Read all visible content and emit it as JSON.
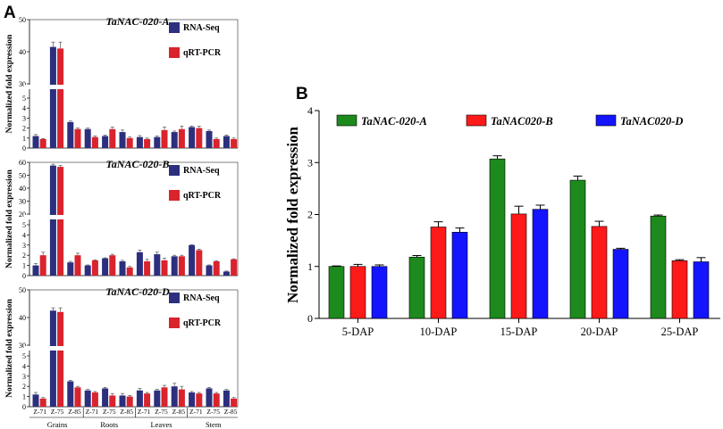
{
  "panels": {
    "a": {
      "letter": "A",
      "ylabel": "Normalized fold expression"
    },
    "b": {
      "letter": "B"
    }
  },
  "colors": {
    "rna_seq": "#2b2f7d",
    "qrt_pcr": "#d9232d",
    "green": "#1c8a1c",
    "red": "#ff1a1a",
    "blue": "#1414ff"
  },
  "chart_data": [
    {
      "type": "bar",
      "title": "TaNAC-020-A",
      "ylabel": "Normalized fold expression",
      "broken_axis": true,
      "ylim_lower": [
        0,
        5
      ],
      "ylim_upper": [
        30,
        50
      ],
      "yticks": [
        0,
        1,
        2,
        3,
        4,
        5,
        30,
        40,
        50
      ],
      "legend_position": "top-right",
      "categories": [
        "Z-71",
        "Z-75",
        "Z-85",
        "Z-71",
        "Z-75",
        "Z-85",
        "Z-71",
        "Z-75",
        "Z-85",
        "Z-71",
        "Z-75",
        "Z-85"
      ],
      "series": [
        {
          "name": "RNA-Seq",
          "values": [
            1.2,
            41.5,
            2.6,
            1.9,
            1.2,
            1.6,
            1.1,
            1.1,
            1.6,
            2.1,
            1.7,
            1.2
          ],
          "errors": [
            0.15,
            1.5,
            0.1,
            0.1,
            0.1,
            0.2,
            0.15,
            0.1,
            0.1,
            0.1,
            0.1,
            0.1
          ]
        },
        {
          "name": "qRT-PCR",
          "values": [
            0.9,
            41.0,
            1.9,
            1.1,
            1.9,
            1.0,
            0.9,
            1.8,
            1.9,
            2.0,
            0.9,
            0.9
          ],
          "errors": [
            0.05,
            2.0,
            0.1,
            0.1,
            0.2,
            0.1,
            0.1,
            0.3,
            0.3,
            0.2,
            0.1,
            0.1
          ]
        }
      ]
    },
    {
      "type": "bar",
      "title": "TaNAC-020-B",
      "ylabel": "Normalized fold expression",
      "broken_axis": true,
      "ylim_lower": [
        0,
        5
      ],
      "ylim_upper": [
        20,
        60
      ],
      "yticks": [
        0,
        1,
        2,
        3,
        4,
        5,
        20,
        30,
        40,
        50,
        60
      ],
      "legend_position": "top-right",
      "categories": [
        "Z-71",
        "Z-75",
        "Z-85",
        "Z-71",
        "Z-75",
        "Z-85",
        "Z-71",
        "Z-75",
        "Z-85",
        "Z-71",
        "Z-75",
        "Z-85"
      ],
      "series": [
        {
          "name": "RNA-Seq",
          "values": [
            1.0,
            57.5,
            1.3,
            1.0,
            1.7,
            1.4,
            2.3,
            2.1,
            1.9,
            3.0,
            1.0,
            0.4
          ],
          "errors": [
            0.2,
            1.0,
            0.1,
            0.05,
            0.05,
            0.1,
            0.2,
            0.2,
            0.1,
            0.05,
            0.05,
            0.05
          ]
        },
        {
          "name": "qRT-PCR",
          "values": [
            2.0,
            56.5,
            2.0,
            1.5,
            2.0,
            0.8,
            1.4,
            1.5,
            1.9,
            2.5,
            1.4,
            1.6
          ],
          "errors": [
            0.3,
            1.0,
            0.2,
            0.05,
            0.1,
            0.1,
            0.2,
            0.2,
            0.1,
            0.1,
            0.05,
            0.05
          ]
        }
      ]
    },
    {
      "type": "bar",
      "title": "TaNAC-020-D",
      "ylabel": "Normalized fold expression",
      "broken_axis": true,
      "ylim_lower": [
        0,
        5
      ],
      "ylim_upper": [
        30,
        50
      ],
      "yticks": [
        0,
        1,
        2,
        3,
        4,
        5,
        30,
        40,
        50
      ],
      "legend_position": "top-right",
      "categories": [
        "Z-71",
        "Z-75",
        "Z-85",
        "Z-71",
        "Z-75",
        "Z-85",
        "Z-71",
        "Z-75",
        "Z-85",
        "Z-71",
        "Z-75",
        "Z-85"
      ],
      "series": [
        {
          "name": "RNA-Seq",
          "values": [
            1.2,
            42.5,
            2.5,
            1.6,
            1.8,
            1.1,
            1.6,
            1.6,
            2.0,
            1.4,
            1.8,
            1.6
          ],
          "errors": [
            0.2,
            1.0,
            0.1,
            0.1,
            0.1,
            0.2,
            0.2,
            0.1,
            0.3,
            0.1,
            0.1,
            0.1
          ]
        },
        {
          "name": "qRT-PCR",
          "values": [
            0.8,
            42.0,
            1.9,
            1.4,
            1.1,
            1.0,
            1.3,
            1.9,
            1.7,
            1.3,
            1.3,
            0.8
          ],
          "errors": [
            0.1,
            1.5,
            0.1,
            0.1,
            0.2,
            0.1,
            0.1,
            0.2,
            0.3,
            0.1,
            0.1,
            0.1
          ]
        }
      ]
    },
    {
      "type": "bar",
      "title": "",
      "ylabel": "Normalized fold expression",
      "xlabel": "",
      "ylim": [
        0,
        4
      ],
      "yticks": [
        0,
        1,
        2,
        3,
        4
      ],
      "legend_position": "top",
      "categories": [
        "5-DAP",
        "10-DAP",
        "15-DAP",
        "20-DAP",
        "25-DAP"
      ],
      "series": [
        {
          "name": "TaNAC-020-A",
          "values": [
            1.0,
            1.18,
            3.07,
            2.66,
            1.97
          ],
          "errors": [
            0.01,
            0.03,
            0.06,
            0.08,
            0.02
          ]
        },
        {
          "name": "TaNAC020-B",
          "values": [
            1.0,
            1.76,
            2.01,
            1.77,
            1.11
          ],
          "errors": [
            0.04,
            0.1,
            0.15,
            0.1,
            0.02
          ]
        },
        {
          "name": "TaNAC020-D",
          "values": [
            1.0,
            1.66,
            2.1,
            1.33,
            1.09
          ],
          "errors": [
            0.03,
            0.08,
            0.08,
            0.02,
            0.08
          ]
        }
      ]
    }
  ],
  "tissue_labels": [
    "Grains",
    "Roots",
    "Leaves",
    "Stem"
  ]
}
